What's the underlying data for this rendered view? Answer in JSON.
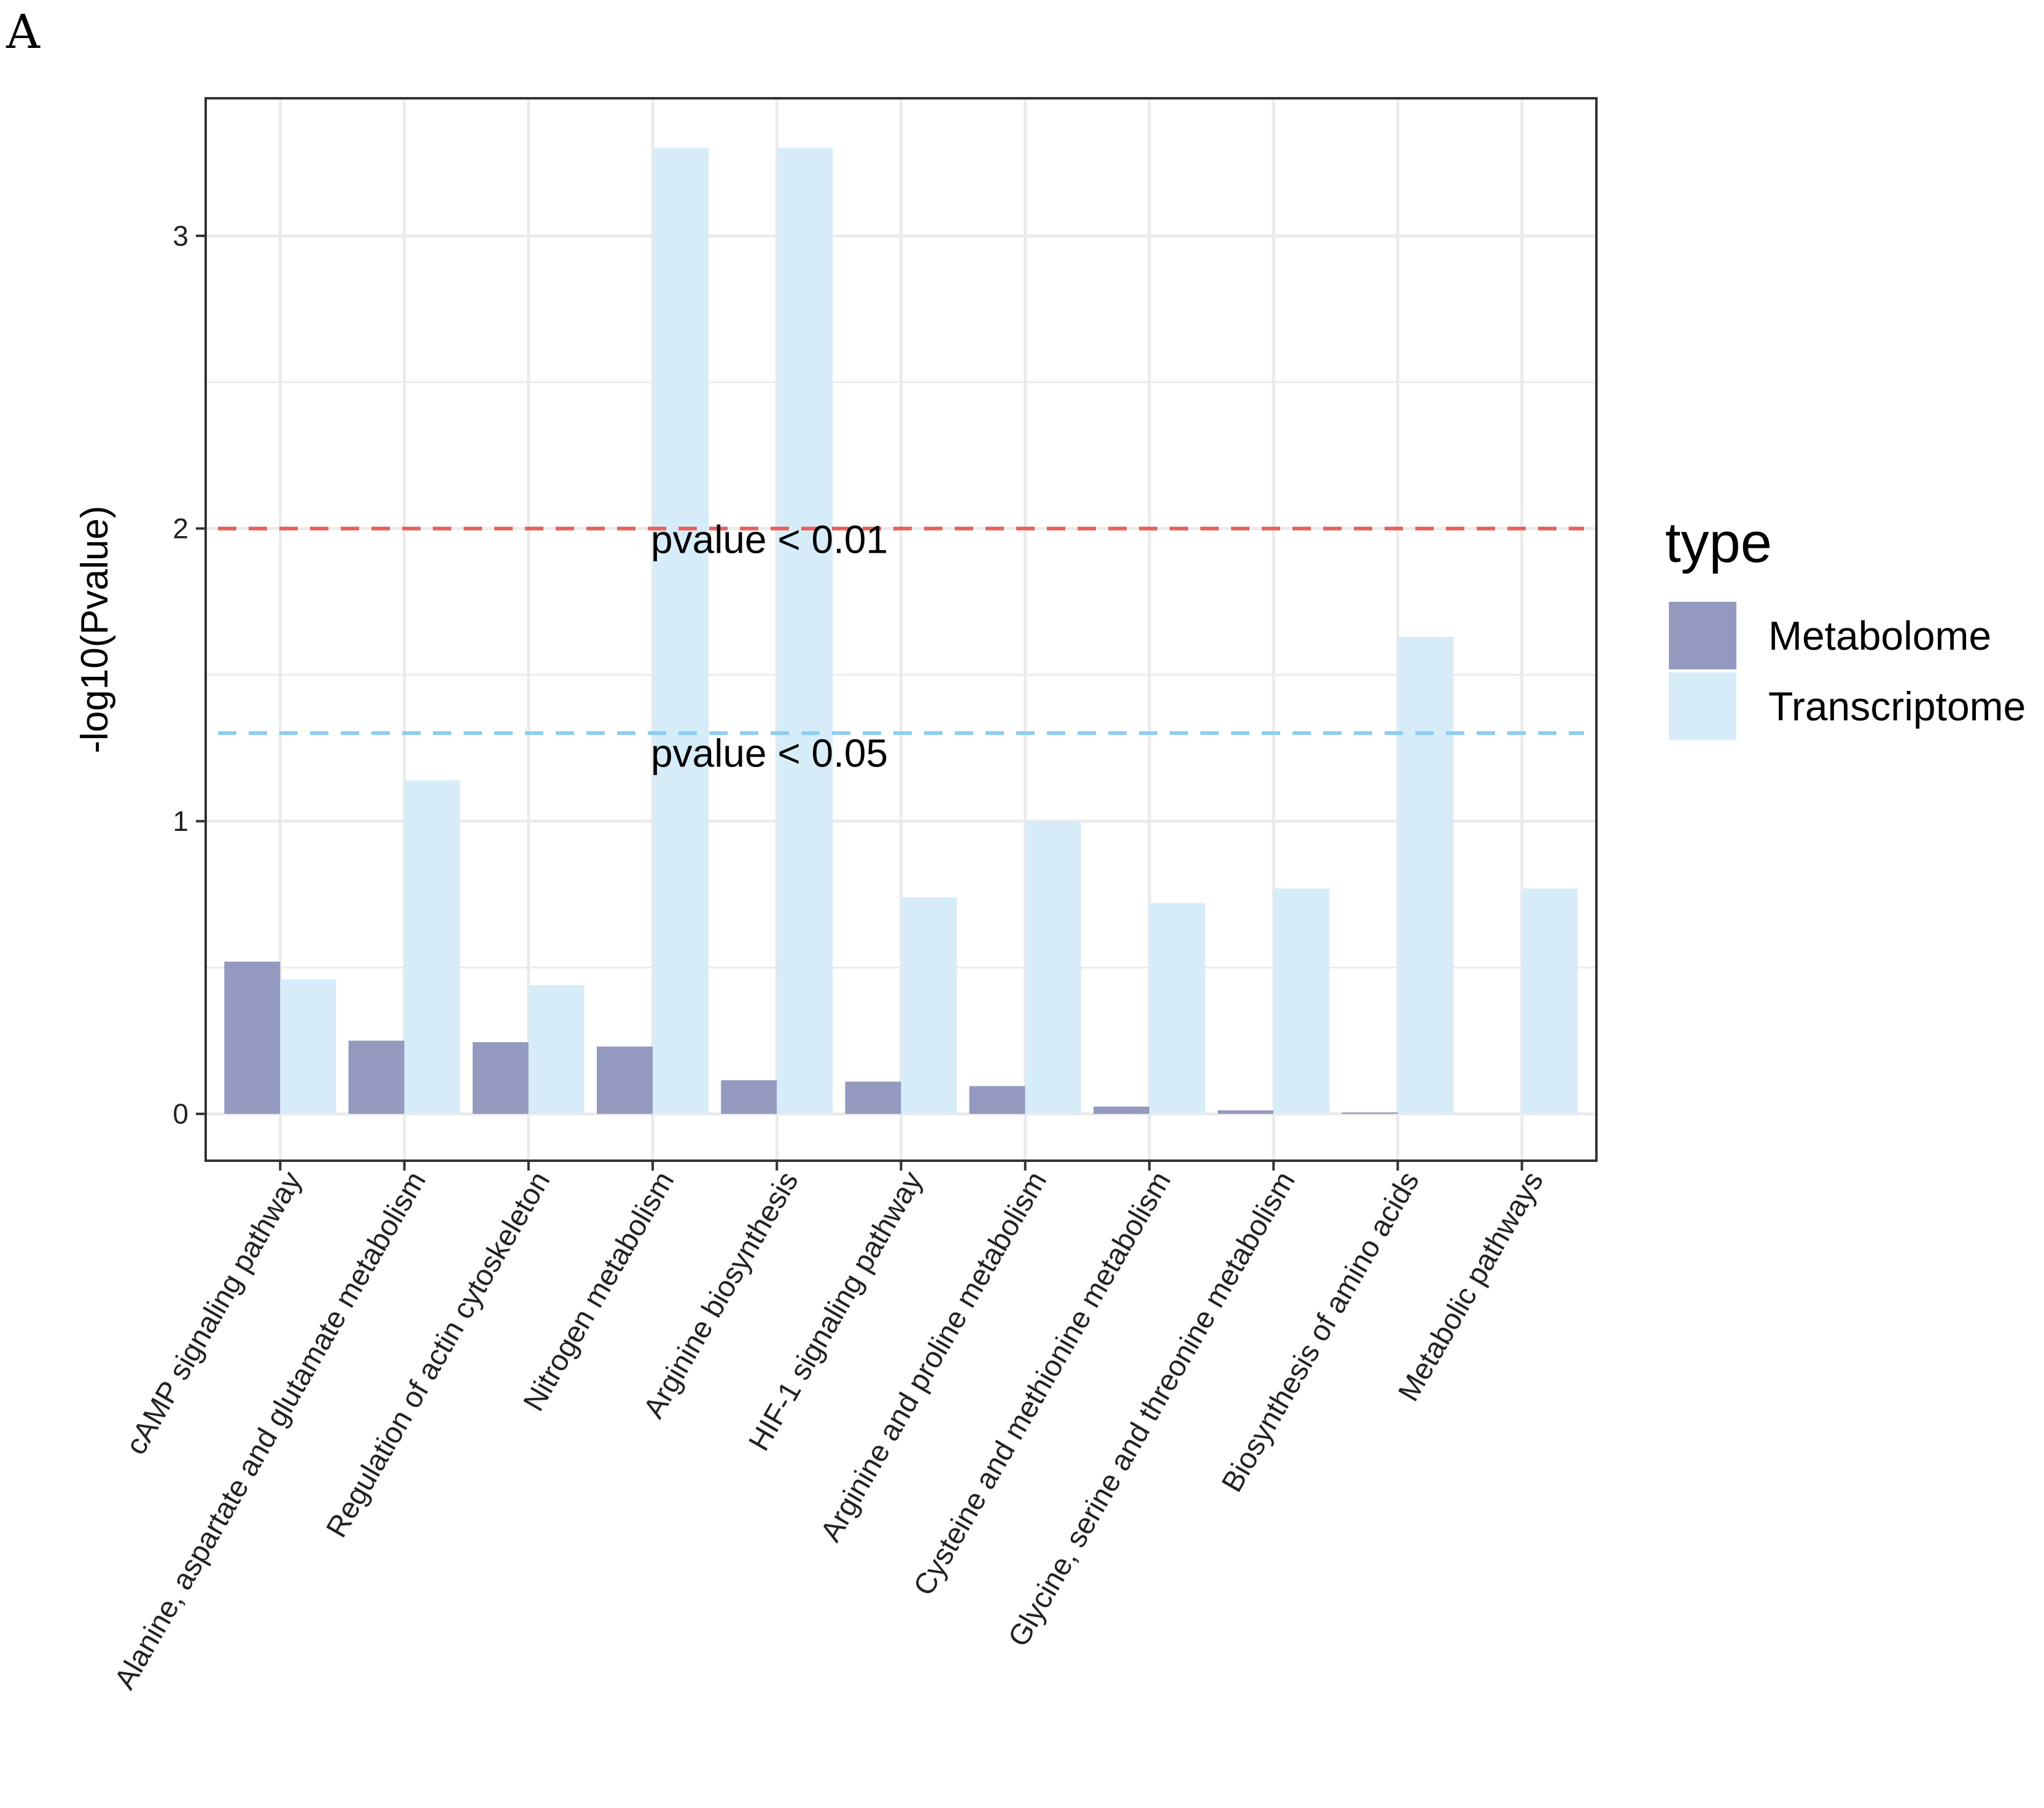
{
  "panel_label": "A",
  "chart_data": {
    "type": "bar",
    "categories": [
      "cAMP signaling pathway",
      "Alanine, aspartate and glutamate metabolism",
      "Regulation of actin cytoskeleton",
      "Nitrogen metabolism",
      "Arginine biosynthesis",
      "HIF-1 signaling pathway",
      "Arginine and proline metabolism",
      "Cysteine and methionine metabolism",
      "Glycine, serine and threonine metabolism",
      "Biosynthesis of amino acids",
      "Metabolic pathways"
    ],
    "series": [
      {
        "name": "Metabolome",
        "color": "#9399bf",
        "values": [
          0.52,
          0.25,
          0.245,
          0.23,
          0.115,
          0.11,
          0.095,
          0.025,
          0.012,
          0.005,
          0.0
        ]
      },
      {
        "name": "Transcriptome",
        "color": "#d6edf9",
        "values": [
          0.46,
          1.14,
          0.44,
          3.3,
          3.3,
          0.74,
          1.0,
          0.72,
          0.77,
          1.63,
          0.77
        ]
      }
    ],
    "ylabel": "-log10(Pvalue)",
    "xlabel": "",
    "ylim": [
      -0.16,
      3.47
    ],
    "yticks": [
      0,
      1,
      2,
      3
    ],
    "grid": true,
    "legend": {
      "title": "type",
      "position": "right"
    },
    "reference_lines": [
      {
        "value": 2,
        "color": "#e8605a",
        "label": "pvalue < 0.01"
      },
      {
        "value": 1.301,
        "color": "#8ccdf2",
        "label": "pvalue < 0.05"
      }
    ]
  }
}
